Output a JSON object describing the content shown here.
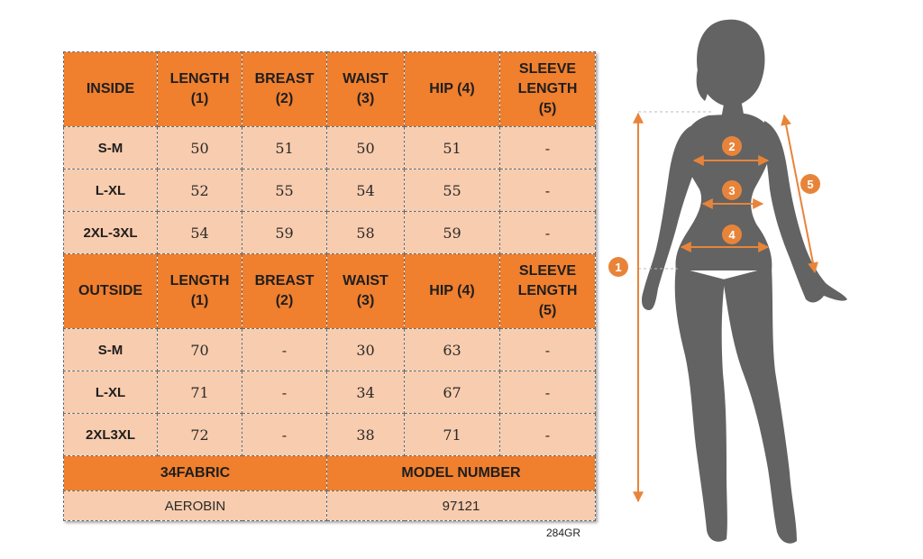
{
  "inside": {
    "header": {
      "label": "INSIDE",
      "columns": [
        [
          "LENGTH",
          "(1)"
        ],
        [
          "BREAST",
          "(2)"
        ],
        [
          "WAIST",
          "(3)"
        ],
        [
          "HIP (4)"
        ],
        [
          "SLEEVE",
          "LENGTH",
          "(5)"
        ]
      ]
    },
    "rows": [
      {
        "size": "S-M",
        "values": [
          "50",
          "51",
          "50",
          "51",
          "-"
        ]
      },
      {
        "size": "L-XL",
        "values": [
          "52",
          "55",
          "54",
          "55",
          "-"
        ]
      },
      {
        "size": "2XL-3XL",
        "values": [
          "54",
          "59",
          "58",
          "59",
          "-"
        ]
      }
    ]
  },
  "outside": {
    "header": {
      "label": "OUTSIDE",
      "columns": [
        [
          "LENGTH",
          "(1)"
        ],
        [
          "BREAST",
          "(2)"
        ],
        [
          "WAIST",
          "(3)"
        ],
        [
          "HIP (4)"
        ],
        [
          "SLEEVE",
          "LENGTH",
          "(5)"
        ]
      ]
    },
    "rows": [
      {
        "size": "S-M",
        "values": [
          "70",
          "-",
          "30",
          "63",
          "-"
        ]
      },
      {
        "size": "L-XL",
        "values": [
          "71",
          "-",
          "34",
          "67",
          "-"
        ]
      },
      {
        "size": "2XL3XL",
        "values": [
          "72",
          "-",
          "38",
          "71",
          "-"
        ]
      }
    ]
  },
  "footer": {
    "fabric_label": "34FABRIC",
    "fabric_value": "AEROBIN",
    "model_label": "MODEL NUMBER",
    "model_value": "97121"
  },
  "product_code": "284GR",
  "figure": {
    "markers": [
      "1",
      "2",
      "3",
      "4",
      "5"
    ]
  },
  "colors": {
    "header_orange": "#f07f2e",
    "cell_peach": "#f8ccae",
    "accent_orange": "#e8843a",
    "silhouette": "#636363"
  }
}
